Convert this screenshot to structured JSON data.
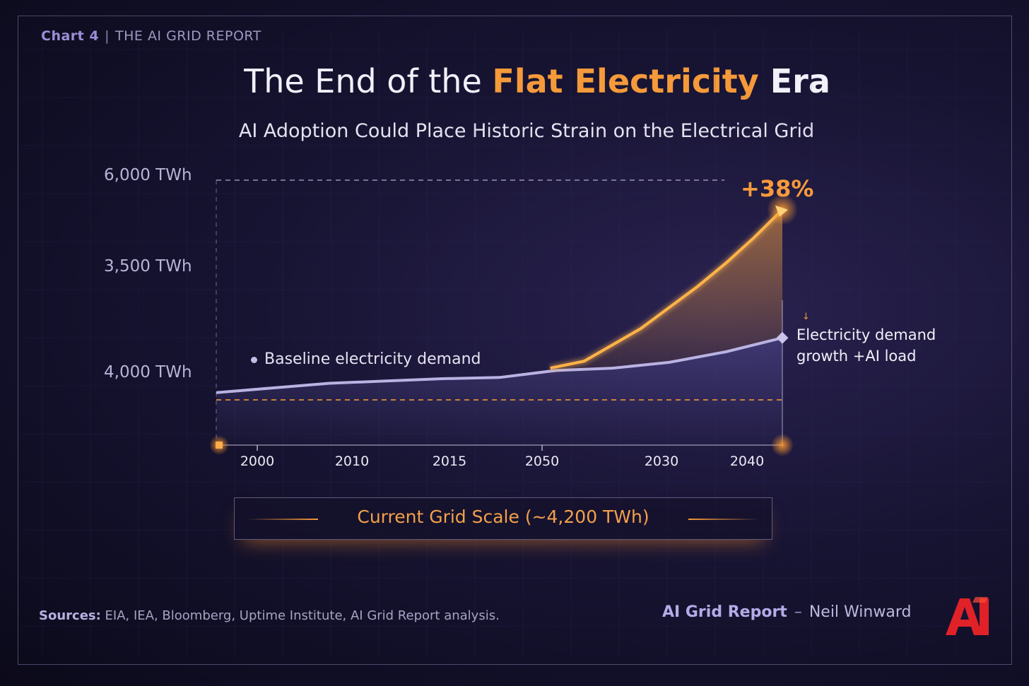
{
  "header": {
    "chart_number": "Chart 4",
    "report_name": "THE AI GRID REPORT"
  },
  "title": {
    "part1": "The End of the ",
    "highlight": "Flat Electricity",
    "part2": " Era"
  },
  "subtitle": "AI Adoption Could Place Historic Strain on the Electrical Grid",
  "colors": {
    "accent": "#f59a3a",
    "baseline": "#b9b2e2",
    "background": "#171433"
  },
  "chart_data": {
    "type": "line",
    "title": "The End of the Flat Electricity Era",
    "y_tick_labels": [
      "6,000 TWh",
      "3,500 TWh",
      "4,000 TWh"
    ],
    "x_tick_labels": [
      "2000",
      "2010",
      "2015",
      "2050",
      "2030",
      "2040"
    ],
    "x_range": [
      0,
      10
    ],
    "y_range": [
      0,
      10
    ],
    "series": [
      {
        "name": "Baseline electricity demand",
        "x": [
          0,
          1,
          2,
          3,
          4,
          5,
          6,
          7,
          8,
          9,
          10
        ],
        "y": [
          2.25,
          2.45,
          2.65,
          2.75,
          2.85,
          2.9,
          3.2,
          3.3,
          3.55,
          4.0,
          4.6
        ]
      },
      {
        "name": "Electricity demand growth +AI load",
        "x": [
          5.9,
          6.5,
          7.0,
          7.5,
          8.0,
          8.5,
          9.0,
          9.5,
          10
        ],
        "y": [
          3.3,
          3.6,
          4.3,
          5.0,
          5.9,
          6.8,
          7.8,
          8.9,
          10.1
        ]
      }
    ],
    "annotations": {
      "pct_increase": "+38%",
      "baseline_label": "Baseline electricity demand",
      "growth_label_line1": "Electricity demand",
      "growth_label_line2": "growth +AI load"
    },
    "reference_line_label": "Current Grid Scale (~4,200 TWh)"
  },
  "footer": {
    "sources_label": "Sources:",
    "sources_text": "EIA, IEA, Bloomberg, Uptime Institute, AI Grid Report analysis.",
    "brand": "AI Grid Report",
    "author": "Neil Winward",
    "logo_text": "AI"
  }
}
